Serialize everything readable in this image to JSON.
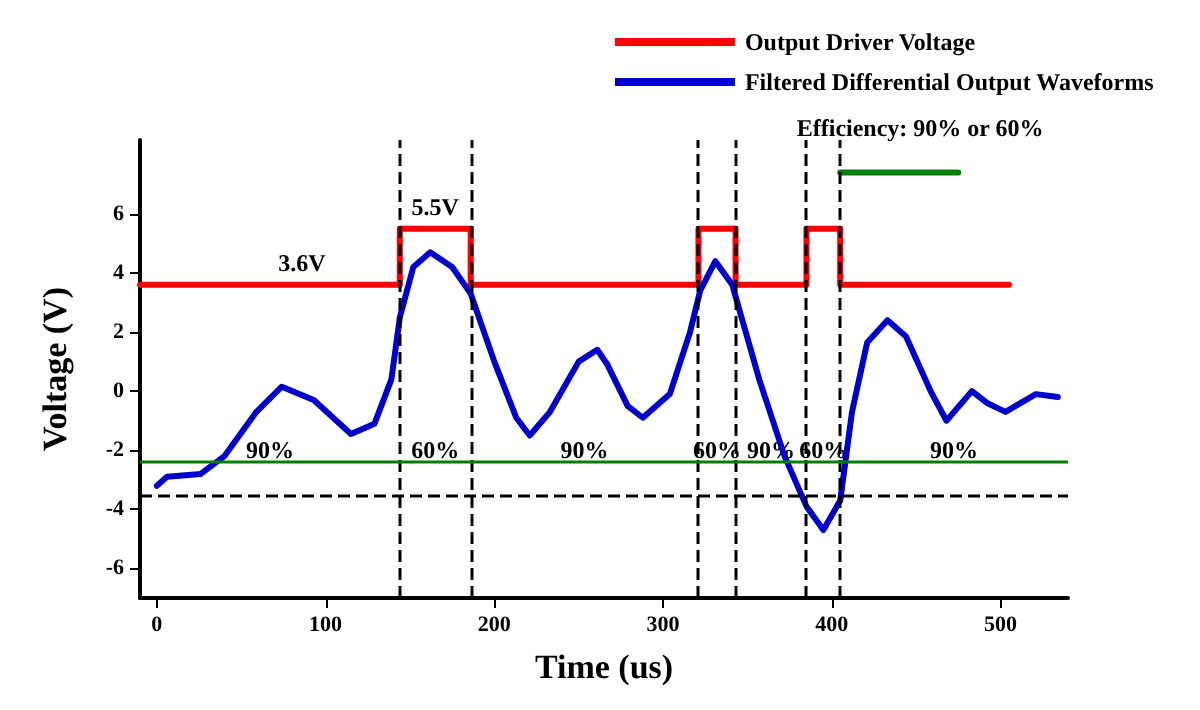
{
  "chart_data": {
    "type": "line",
    "xlabel": "Time (us)",
    "ylabel": "Voltage (V)",
    "xlim": [
      -10,
      540
    ],
    "ylim": [
      -7,
      8.5
    ],
    "xticks": [
      0,
      100,
      200,
      300,
      400,
      500
    ],
    "yticks": [
      -6,
      -4,
      -2,
      0,
      2,
      4,
      6
    ],
    "grid": false,
    "legend": "top right",
    "marker": "none",
    "series": [
      {
        "name": "Output Driver Voltage",
        "type": "step",
        "color": "#ff0000",
        "x": [
          -10,
          86,
          144,
          165,
          186,
          321,
          343,
          385,
          405,
          505
        ],
        "values": [
          3.6,
          3.6,
          5.5,
          5.5,
          3.6,
          5.5,
          3.6,
          5.5,
          3.6,
          3.6
        ],
        "value_labels": [
          null,
          "3.6V",
          null,
          "5.5V",
          null,
          null,
          null,
          null,
          null,
          null
        ]
      },
      {
        "name": "Filtered Differential Output Waveforms",
        "type": "line",
        "color": "#0000cc",
        "x": [
          0,
          6,
          26,
          40,
          59,
          74,
          93,
          115,
          129,
          139,
          144,
          152,
          162,
          175,
          186,
          200,
          213,
          221,
          233,
          250,
          261,
          267,
          279,
          288,
          304,
          316,
          322,
          331,
          341,
          357,
          372,
          385,
          395,
          405,
          412,
          421,
          433,
          444,
          459,
          468,
          483,
          492,
          503,
          521,
          534
        ],
        "values": [
          -3.2,
          -2.9,
          -2.8,
          -2.2,
          -0.7,
          0.15,
          -0.3,
          -1.45,
          -1.1,
          0.4,
          2.5,
          4.2,
          4.7,
          4.2,
          3.3,
          1.0,
          -0.9,
          -1.5,
          -0.7,
          1.0,
          1.4,
          0.9,
          -0.5,
          -0.9,
          -0.1,
          2.0,
          3.4,
          4.4,
          3.6,
          0.4,
          -2.2,
          -3.9,
          -4.7,
          -3.7,
          -0.7,
          1.65,
          2.4,
          1.85,
          -0.05,
          -1.0,
          0,
          -0.4,
          -0.7,
          -0.1,
          -0.2
        ]
      },
      {
        "type": "line",
        "color": "#008000",
        "x": [
          405,
          475
        ],
        "values": [
          7.4,
          7.4
        ]
      }
    ],
    "ref_lines": [
      {
        "axis": "x",
        "value": 144,
        "color": "#000000",
        "line_style": "dashed"
      },
      {
        "axis": "x",
        "value": 186,
        "color": "#000000",
        "line_style": "dashed"
      },
      {
        "axis": "x",
        "value": 321,
        "color": "#000000",
        "line_style": "dashed"
      },
      {
        "axis": "x",
        "value": 343,
        "color": "#000000",
        "line_style": "dashed"
      },
      {
        "axis": "x",
        "value": 385,
        "color": "#000000",
        "line_style": "dashed"
      },
      {
        "axis": "x",
        "value": 405,
        "color": "#000000",
        "line_style": "dashed"
      },
      {
        "axis": "y",
        "value": -3.5,
        "color": "#000000",
        "line_style": "dashed"
      },
      {
        "axis": "y",
        "value": -2.35,
        "color": "#008000",
        "line_style": "solid"
      }
    ],
    "annotations": [
      "90%",
      "60%",
      "90%",
      "60%",
      "90%",
      "60%",
      "90%",
      "Efficiency: 90% or 60%"
    ]
  }
}
